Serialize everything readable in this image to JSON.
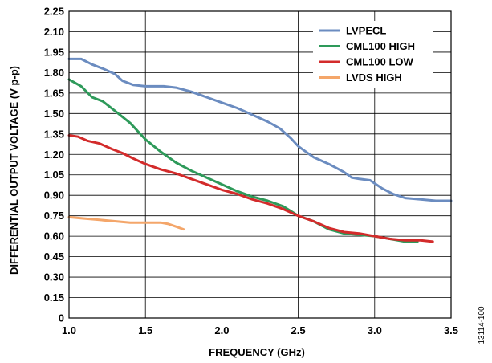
{
  "chart_data": {
    "type": "line",
    "xlabel": "FREQUENCY (GHz)",
    "ylabel": "DIFFERENTIAL OUTPUT VOLTAGE (V p-p)",
    "xlim": [
      1.0,
      3.5
    ],
    "ylim": [
      0,
      2.25
    ],
    "x_ticks": [
      "1.0",
      "1.5",
      "2.0",
      "2.5",
      "3.0",
      "3.5"
    ],
    "y_ticks": [
      "0",
      "0.15",
      "0.30",
      "0.45",
      "0.60",
      "0.75",
      "0.90",
      "1.05",
      "1.20",
      "1.35",
      "1.50",
      "1.65",
      "1.80",
      "1.95",
      "2.10",
      "2.25"
    ],
    "grid": true,
    "legend_position": "top-right",
    "figure_id": "13114-100",
    "series": [
      {
        "name": "LVPECL",
        "color": "#6b8cc0",
        "points": [
          [
            1.0,
            1.9
          ],
          [
            1.08,
            1.9
          ],
          [
            1.15,
            1.86
          ],
          [
            1.22,
            1.83
          ],
          [
            1.3,
            1.79
          ],
          [
            1.35,
            1.74
          ],
          [
            1.42,
            1.71
          ],
          [
            1.5,
            1.7
          ],
          [
            1.55,
            1.7
          ],
          [
            1.62,
            1.7
          ],
          [
            1.7,
            1.69
          ],
          [
            1.8,
            1.66
          ],
          [
            1.9,
            1.62
          ],
          [
            2.0,
            1.58
          ],
          [
            2.1,
            1.54
          ],
          [
            2.2,
            1.49
          ],
          [
            2.3,
            1.44
          ],
          [
            2.38,
            1.39
          ],
          [
            2.45,
            1.32
          ],
          [
            2.5,
            1.26
          ],
          [
            2.6,
            1.18
          ],
          [
            2.7,
            1.13
          ],
          [
            2.8,
            1.07
          ],
          [
            2.85,
            1.03
          ],
          [
            2.9,
            1.02
          ],
          [
            2.97,
            1.01
          ],
          [
            3.05,
            0.95
          ],
          [
            3.12,
            0.91
          ],
          [
            3.2,
            0.88
          ],
          [
            3.3,
            0.87
          ],
          [
            3.4,
            0.86
          ],
          [
            3.5,
            0.86
          ]
        ]
      },
      {
        "name": "CML100 HIGH",
        "color": "#2e9a5a",
        "points": [
          [
            1.0,
            1.75
          ],
          [
            1.08,
            1.7
          ],
          [
            1.15,
            1.62
          ],
          [
            1.22,
            1.59
          ],
          [
            1.3,
            1.52
          ],
          [
            1.4,
            1.43
          ],
          [
            1.5,
            1.31
          ],
          [
            1.6,
            1.22
          ],
          [
            1.7,
            1.14
          ],
          [
            1.8,
            1.08
          ],
          [
            1.9,
            1.03
          ],
          [
            2.0,
            0.98
          ],
          [
            2.1,
            0.93
          ],
          [
            2.2,
            0.89
          ],
          [
            2.3,
            0.86
          ],
          [
            2.4,
            0.82
          ],
          [
            2.5,
            0.75
          ],
          [
            2.6,
            0.71
          ],
          [
            2.7,
            0.65
          ],
          [
            2.8,
            0.62
          ],
          [
            2.9,
            0.61
          ],
          [
            3.0,
            0.6
          ],
          [
            3.1,
            0.58
          ],
          [
            3.2,
            0.56
          ],
          [
            3.28,
            0.56
          ]
        ]
      },
      {
        "name": "CML100 LOW",
        "color": "#d32b2b",
        "points": [
          [
            1.0,
            1.34
          ],
          [
            1.06,
            1.33
          ],
          [
            1.12,
            1.3
          ],
          [
            1.2,
            1.28
          ],
          [
            1.28,
            1.24
          ],
          [
            1.35,
            1.21
          ],
          [
            1.42,
            1.17
          ],
          [
            1.5,
            1.13
          ],
          [
            1.6,
            1.09
          ],
          [
            1.7,
            1.06
          ],
          [
            1.8,
            1.02
          ],
          [
            1.9,
            0.98
          ],
          [
            2.0,
            0.94
          ],
          [
            2.1,
            0.91
          ],
          [
            2.2,
            0.87
          ],
          [
            2.3,
            0.84
          ],
          [
            2.4,
            0.8
          ],
          [
            2.5,
            0.75
          ],
          [
            2.6,
            0.71
          ],
          [
            2.7,
            0.66
          ],
          [
            2.8,
            0.63
          ],
          [
            2.9,
            0.62
          ],
          [
            3.0,
            0.6
          ],
          [
            3.1,
            0.58
          ],
          [
            3.2,
            0.57
          ],
          [
            3.3,
            0.57
          ],
          [
            3.38,
            0.56
          ]
        ]
      },
      {
        "name": "LVDS HIGH",
        "color": "#f4a66a",
        "points": [
          [
            1.0,
            0.74
          ],
          [
            1.1,
            0.73
          ],
          [
            1.2,
            0.72
          ],
          [
            1.3,
            0.71
          ],
          [
            1.4,
            0.7
          ],
          [
            1.5,
            0.7
          ],
          [
            1.6,
            0.7
          ],
          [
            1.65,
            0.69
          ],
          [
            1.7,
            0.67
          ],
          [
            1.75,
            0.65
          ]
        ]
      }
    ]
  }
}
